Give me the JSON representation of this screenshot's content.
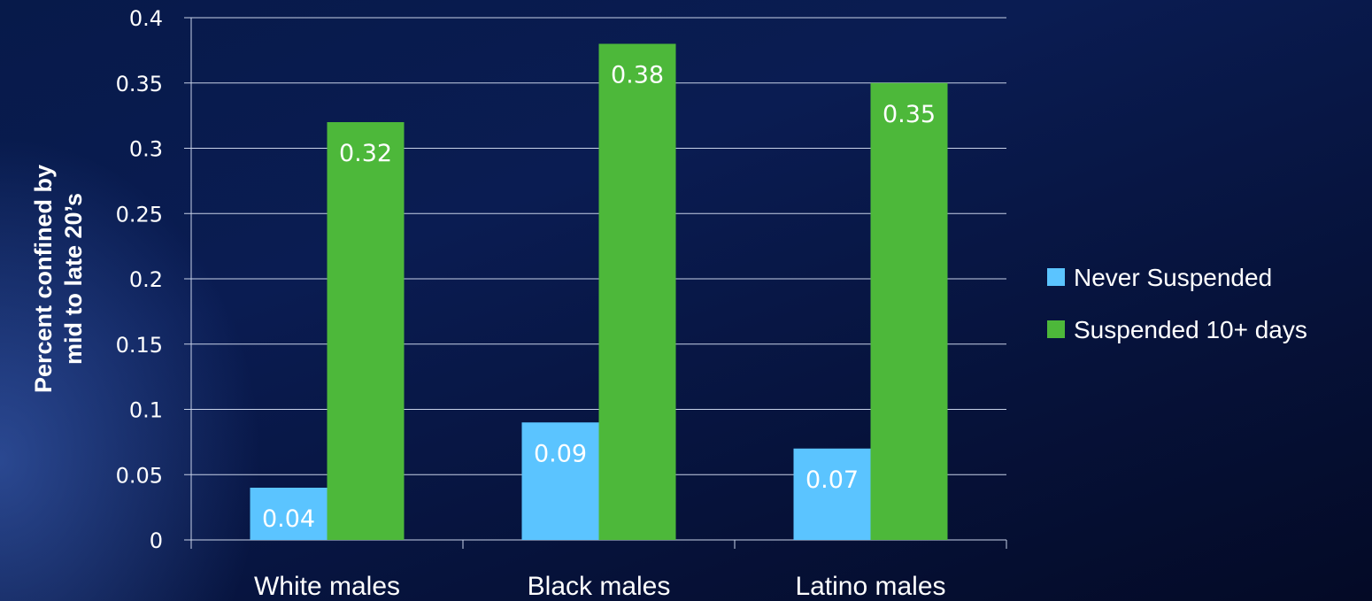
{
  "chart_data": {
    "type": "bar",
    "categories": [
      "White males",
      "Black males",
      "Latino males"
    ],
    "series": [
      {
        "name": "Never Suspended",
        "values": [
          0.04,
          0.09,
          0.07
        ],
        "color": "#5bc4ff"
      },
      {
        "name": "Suspended 10+ days",
        "values": [
          0.32,
          0.38,
          0.35
        ],
        "color": "#4db83a"
      }
    ],
    "data_labels": [
      [
        "0.04",
        "0.09",
        "0.07"
      ],
      [
        "0.32",
        "0.38",
        "0.35"
      ]
    ],
    "yticks": [
      "0",
      "0.05",
      "0.1",
      "0.15",
      "0.2",
      "0.25",
      "0.3",
      "0.35",
      "0.4"
    ],
    "ylim": [
      0,
      0.4
    ],
    "ylabel_lines": [
      "Percent confined by",
      "mid to late 20’s"
    ],
    "title": "",
    "xlabel": "",
    "grid": true,
    "legend_position": "right"
  }
}
